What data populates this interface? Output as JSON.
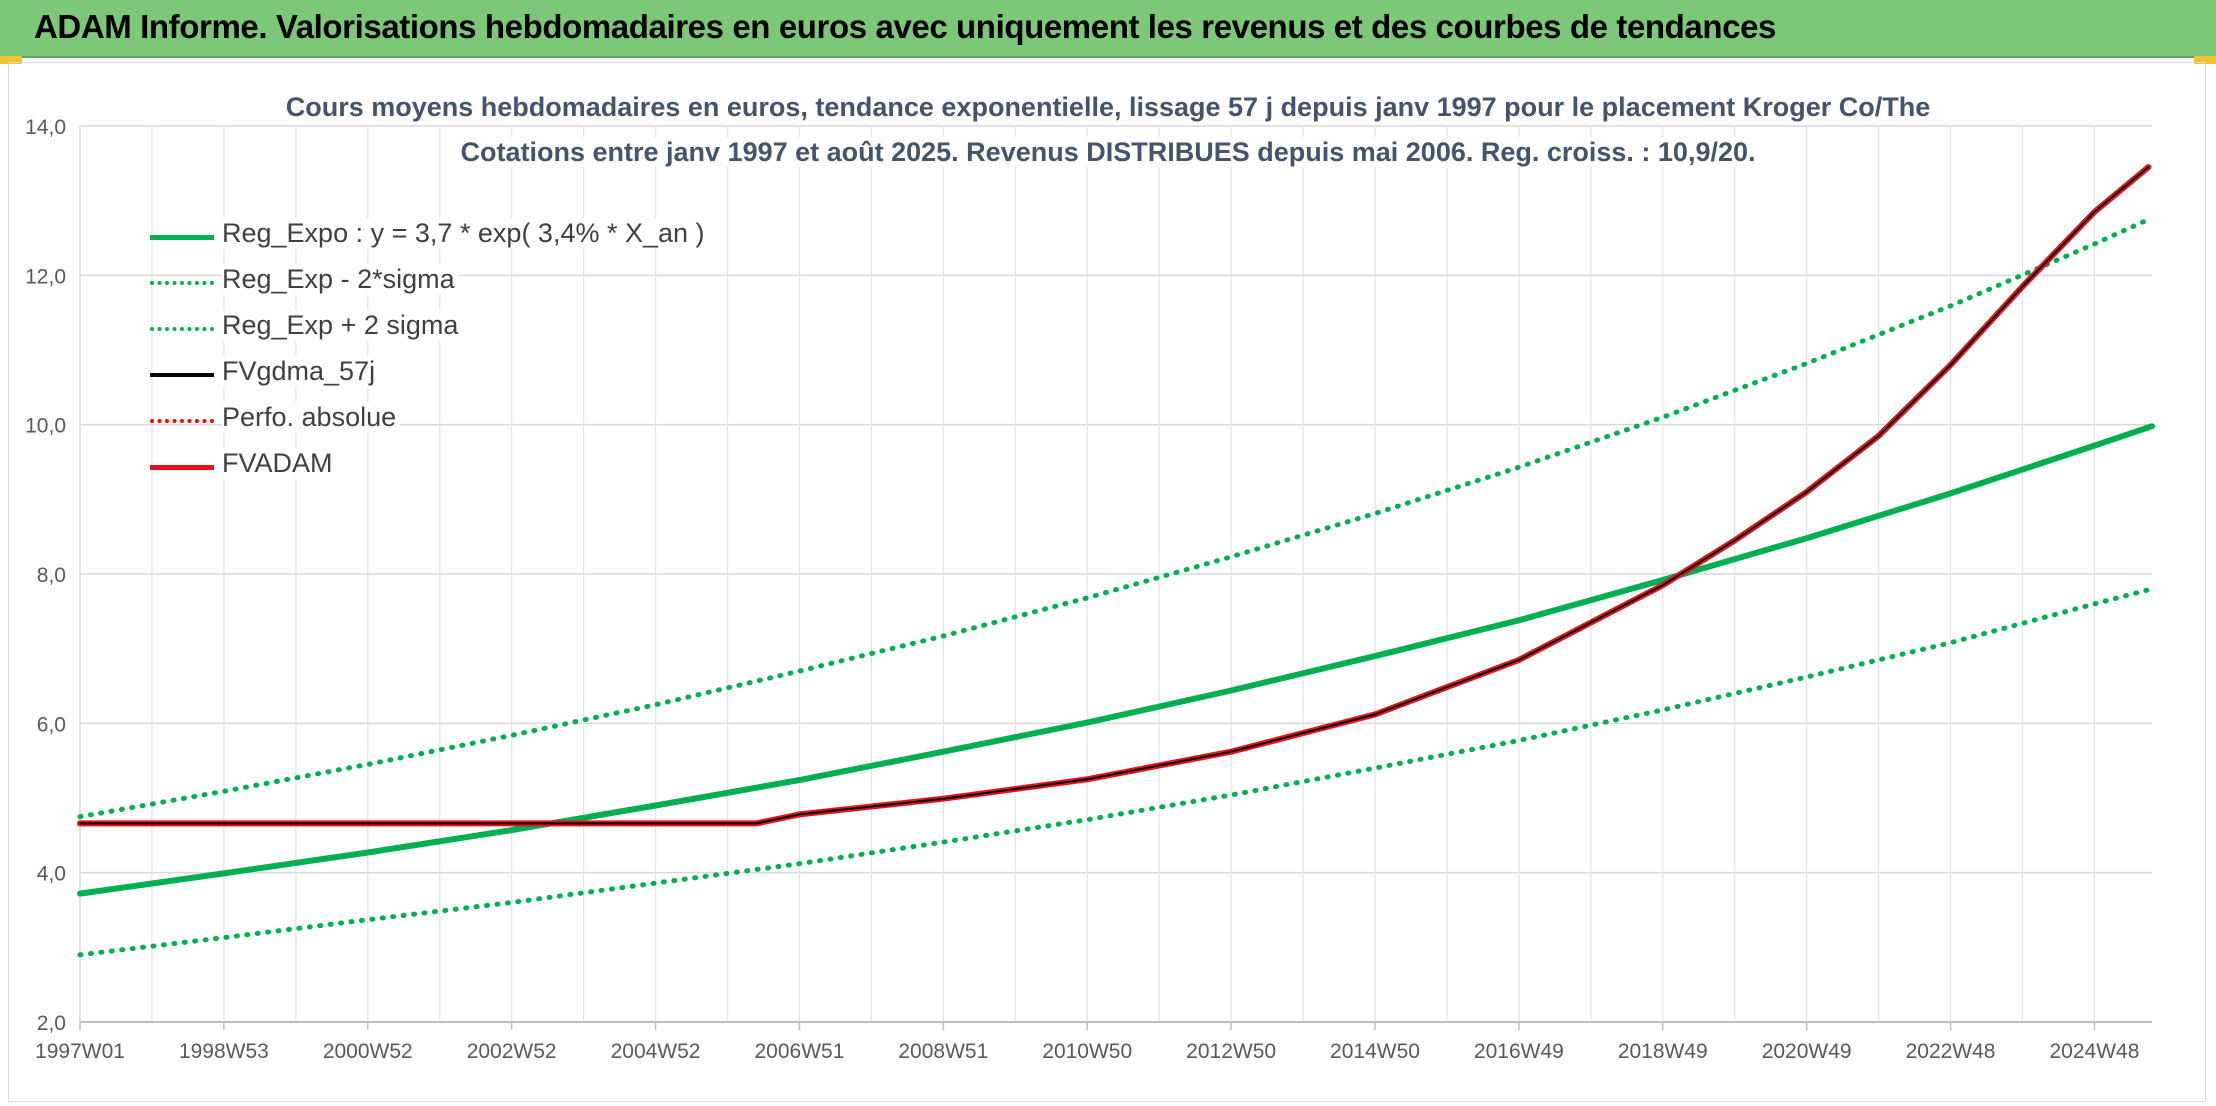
{
  "banner": {
    "title": "ADAM Informe. Valorisations hebdomadaires en euros avec uniquement les revenus et des courbes de tendances",
    "color": "#7dc878"
  },
  "chart_data": {
    "type": "line",
    "title_line1": "Cours moyens hebdomadaires en euros, tendance exponentielle, lissage 57 j depuis janv 1997 pour le placement Kroger Co/The",
    "title_line2": "Cotations entre janv 1997 et août 2025. Revenus DISTRIBUES depuis mai 2006. Reg. croiss. : 10,9/20.",
    "x_ticks": [
      "1997W01",
      "1998W53",
      "2000W52",
      "2002W52",
      "2004W52",
      "2006W51",
      "2008W51",
      "2010W50",
      "2012W50",
      "2014W50",
      "2016W49",
      "2018W49",
      "2020W49",
      "2022W48",
      "2024W48"
    ],
    "x_tick_years": [
      1997.0,
      1999.0,
      2001.0,
      2003.0,
      2005.0,
      2007.0,
      2009.0,
      2011.0,
      2013.0,
      2015.0,
      2017.0,
      2019.0,
      2021.0,
      2023.0,
      2025.0
    ],
    "xlim": [
      1997.0,
      2025.8
    ],
    "y_ticks": [
      "2,0",
      "4,0",
      "6,0",
      "8,0",
      "10,0",
      "12,0",
      "14,0"
    ],
    "y_tick_values": [
      2,
      4,
      6,
      8,
      10,
      12,
      14
    ],
    "ylim": [
      2,
      14
    ],
    "grid": true,
    "legend_position": "top-left",
    "series": [
      {
        "name": "Reg_Expo : y = 3,7 * exp( 3,4% *  X_an )",
        "color": "#00b050",
        "style": "solid",
        "width": 6,
        "x": [
          1997.0,
          1999.0,
          2001.0,
          2003.0,
          2005.0,
          2007.0,
          2009.0,
          2011.0,
          2013.0,
          2015.0,
          2017.0,
          2019.0,
          2021.0,
          2023.0,
          2025.0,
          2025.8
        ],
        "y": [
          3.72,
          3.99,
          4.27,
          4.57,
          4.9,
          5.24,
          5.62,
          6.01,
          6.44,
          6.9,
          7.38,
          7.92,
          8.48,
          9.08,
          9.72,
          9.98
        ]
      },
      {
        "name": "Reg_Exp - 2*sigma",
        "color": "#00b050",
        "style": "dotted",
        "width": 5,
        "x": [
          1997.0,
          1999.0,
          2001.0,
          2003.0,
          2005.0,
          2007.0,
          2009.0,
          2011.0,
          2013.0,
          2015.0,
          2017.0,
          2019.0,
          2021.0,
          2023.0,
          2025.0,
          2025.8
        ],
        "y": [
          2.9,
          3.13,
          3.37,
          3.6,
          3.86,
          4.12,
          4.41,
          4.71,
          5.04,
          5.4,
          5.77,
          6.18,
          6.62,
          7.08,
          7.6,
          7.8
        ]
      },
      {
        "name": "Reg_Exp + 2 sigma",
        "color": "#00b050",
        "style": "dotted",
        "width": 5,
        "x": [
          1997.0,
          1999.0,
          2001.0,
          2003.0,
          2005.0,
          2007.0,
          2009.0,
          2011.0,
          2013.0,
          2015.0,
          2017.0,
          2019.0,
          2021.0,
          2023.0,
          2025.0,
          2025.8
        ],
        "y": [
          4.75,
          5.09,
          5.45,
          5.84,
          6.25,
          6.7,
          7.17,
          7.68,
          8.23,
          8.81,
          9.43,
          10.1,
          10.82,
          11.59,
          12.42,
          12.77
        ]
      },
      {
        "name": "FVgdma_57j",
        "color": "#000000",
        "style": "solid",
        "width": 5,
        "x": [
          1997.0,
          2006.4,
          2007.0,
          2009.0,
          2011.0,
          2013.0,
          2015.0,
          2017.0,
          2019.0,
          2020.0,
          2021.0,
          2022.0,
          2023.0,
          2024.0,
          2025.0,
          2025.75
        ],
        "y": [
          4.66,
          4.66,
          4.78,
          4.99,
          5.25,
          5.62,
          6.12,
          6.85,
          7.85,
          8.45,
          9.1,
          9.85,
          10.8,
          11.85,
          12.85,
          13.45
        ]
      },
      {
        "name": "Perfo. absolue",
        "color": "#ff0000",
        "style": "dotted",
        "width": 4,
        "x": [],
        "y": []
      },
      {
        "name": "FVADAM",
        "color": "#e8111b",
        "style": "solid",
        "width": 6,
        "x": [
          1997.0,
          2006.4,
          2007.0,
          2009.0,
          2011.0,
          2013.0,
          2015.0,
          2017.0,
          2019.0,
          2020.0,
          2021.0,
          2022.0,
          2023.0,
          2024.0,
          2025.0,
          2025.75
        ],
        "y": [
          4.66,
          4.66,
          4.78,
          4.99,
          5.25,
          5.62,
          6.12,
          6.85,
          7.85,
          8.45,
          9.1,
          9.85,
          10.8,
          11.85,
          12.85,
          13.45
        ]
      }
    ]
  }
}
